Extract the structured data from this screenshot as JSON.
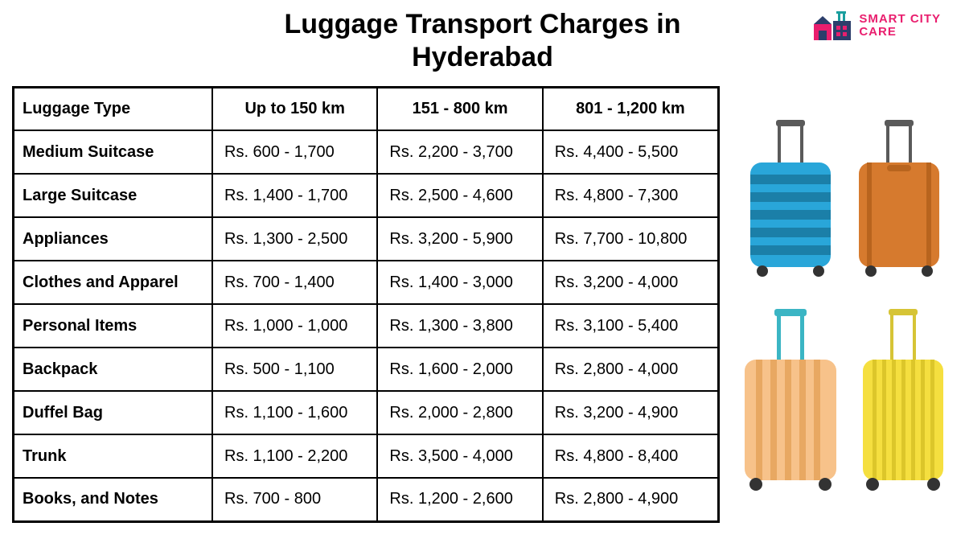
{
  "title_line1": "Luggage Transport Charges in",
  "title_line2": "Hyderabad",
  "logo": {
    "text_line1": "SMART CITY",
    "text_line2": "CARE",
    "colors": {
      "pink": "#e91e6e",
      "navy": "#2c3e6b",
      "teal": "#1a9e9e"
    }
  },
  "table": {
    "columns": [
      "Luggage Type",
      "Up to 150 km",
      "151 - 800 km",
      "801 - 1,200 km"
    ],
    "rows": [
      [
        "Medium Suitcase",
        "Rs. 600 - 1,700",
        "Rs. 2,200 - 3,700",
        "Rs. 4,400 - 5,500"
      ],
      [
        "Large Suitcase",
        "Rs. 1,400 - 1,700",
        "Rs. 2,500 - 4,600",
        "Rs. 4,800 - 7,300"
      ],
      [
        "Appliances",
        "Rs. 1,300 - 2,500",
        "Rs. 3,200 - 5,900",
        "Rs. 7,700 - 10,800"
      ],
      [
        "Clothes and Apparel",
        "Rs. 700 - 1,400",
        "Rs. 1,400 - 3,000",
        "Rs. 3,200 - 4,000"
      ],
      [
        "Personal Items",
        "Rs. 1,000 - 1,000",
        "Rs. 1,300 - 3,800",
        "Rs. 3,100 - 5,400"
      ],
      [
        "Backpack",
        "Rs. 500 - 1,100",
        "Rs. 1,600 - 2,000",
        "Rs. 2,800 - 4,000"
      ],
      [
        "Duffel Bag",
        "Rs. 1,100 - 1,600",
        "Rs. 2,000 - 2,800",
        "Rs. 3,200 - 4,900"
      ],
      [
        "Trunk",
        "Rs. 1,100 - 2,200",
        "Rs. 3,500 - 4,000",
        "Rs. 4,800 - 8,400"
      ],
      [
        "Books, and Notes",
        "Rs. 700 - 800",
        "Rs. 1,200 - 2,600",
        "Rs. 2,800 - 4,900"
      ]
    ],
    "border_color": "#000000",
    "header_fontsize": 20,
    "cell_fontsize": 20
  },
  "suitcases": {
    "blue": {
      "body": "#29a6d9",
      "shade": "#1b7fa8",
      "handle": "#5a5a5a"
    },
    "orange_top": {
      "body": "#d67a2e",
      "shade": "#b8641e",
      "handle": "#5a5a5a"
    },
    "orange_bottom": {
      "body": "#f7c28a",
      "shade": "#e8a862",
      "handle": "#3bb5c4"
    },
    "yellow": {
      "body": "#f5df3f",
      "shade": "#dcc62a",
      "handle": "#d6c436"
    }
  },
  "background_color": "#ffffff"
}
